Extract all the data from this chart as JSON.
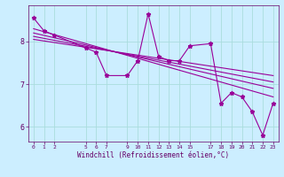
{
  "xlabel": "Windchill (Refroidissement éolien,°C)",
  "bg_color": "#cceeff",
  "line_color": "#990099",
  "grid_color": "#aadddd",
  "x_ticks": [
    0,
    1,
    2,
    5,
    6,
    7,
    9,
    10,
    11,
    12,
    13,
    14,
    15,
    17,
    18,
    19,
    20,
    21,
    22,
    23
  ],
  "xlim": [
    -0.5,
    23.5
  ],
  "ylim": [
    5.65,
    8.85
  ],
  "y_ticks": [
    6,
    7,
    8
  ],
  "main_series_x": [
    0,
    1,
    2,
    5,
    6,
    7,
    9,
    10,
    11,
    12,
    13,
    14,
    15,
    17,
    18,
    19,
    20,
    21,
    22,
    23
  ],
  "main_series_y": [
    8.55,
    8.25,
    8.15,
    7.85,
    7.75,
    7.2,
    7.2,
    7.55,
    8.65,
    7.65,
    7.55,
    7.55,
    7.9,
    7.95,
    6.55,
    6.8,
    6.7,
    6.35,
    5.8,
    6.55
  ],
  "reg_lines": [
    {
      "x": [
        0,
        23
      ],
      "y": [
        8.3,
        6.7
      ]
    },
    {
      "x": [
        0,
        23
      ],
      "y": [
        8.2,
        6.9
      ]
    },
    {
      "x": [
        0,
        23
      ],
      "y": [
        8.12,
        7.05
      ]
    },
    {
      "x": [
        0,
        23
      ],
      "y": [
        8.05,
        7.2
      ]
    }
  ],
  "xlabel_fontsize": 5.5,
  "ylabel_fontsize": 6,
  "xtick_fontsize": 4.5,
  "ytick_fontsize": 6
}
